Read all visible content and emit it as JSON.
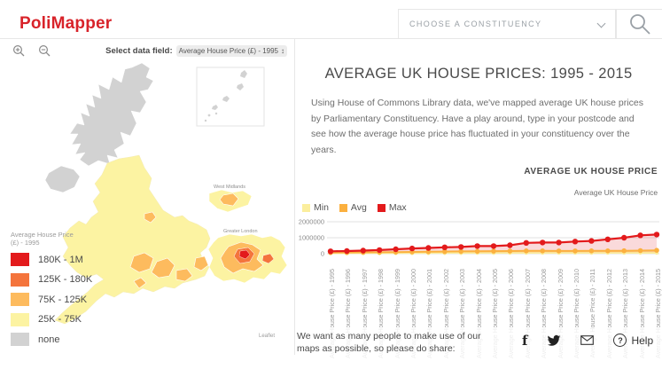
{
  "header": {
    "logo": "PoliMapper",
    "constituency_placeholder": "CHOOSE A CONSTITUENCY"
  },
  "map_panel": {
    "select_label": "Select data field:",
    "select_value": "Average House Price (£) - 1995",
    "inset_labels": {
      "west_midlands": "West Midlands",
      "greater_london": "Greater London"
    },
    "attribution": "Leaflet",
    "legend": {
      "title_line1": "Average House Price",
      "title_line2": "(£) - 1995",
      "items": [
        {
          "label": "180K - 1M",
          "color": "#e31a1c"
        },
        {
          "label": "125K - 180K",
          "color": "#f4743c"
        },
        {
          "label": "75K - 125K",
          "color": "#fdbb5e"
        },
        {
          "label": "25K - 75K",
          "color": "#fcf3a2"
        },
        {
          "label": "none",
          "color": "#d2d2d2"
        }
      ]
    }
  },
  "article": {
    "title": "AVERAGE UK HOUSE PRICES: 1995 - 2015",
    "body": "Using House of Commons Library data, we've mapped average UK house prices by Parliamentary Constituency. Have a play around, type in your postcode and see how the average house price has fluctuated in your constituency over the years.",
    "chart_heading": "AVERAGE UK HOUSE PRICE",
    "chart_subheading": "Average UK House Price"
  },
  "chart_data": {
    "type": "line",
    "title": "Average UK House Price",
    "categories": [
      "Average House Price (£) - 1995",
      "Average House Price (£) - 1996",
      "Average House Price (£) - 1997",
      "Average House Price (£) - 1998",
      "Average House Price (£) - 1999",
      "Average House Price (£) - 2000",
      "Average House Price (£) - 2001",
      "Average House Price (£) - 2002",
      "Average House Price (£) - 2003",
      "Average House Price (£) - 2004",
      "Average House Price (£) - 2005",
      "Average House Price (£) - 2006",
      "Average House Price (£) - 2007",
      "Average House Price (£) - 2008",
      "Average House Price (£) - 2009",
      "Average House Price (£) - 2010",
      "Average House Price (£) - 2011",
      "Average House Price (£) - 2012",
      "Average House Price (£) - 2013",
      "Average House Price (£) - 2014",
      "Average House Price (£) - 2015"
    ],
    "series": [
      {
        "name": "Min",
        "color": "#fbee9d",
        "fill": "rgba(252,243,167,0.85)",
        "values": [
          22000,
          23000,
          25000,
          27000,
          30000,
          33000,
          35000,
          38000,
          41000,
          44000,
          46000,
          48000,
          50000,
          52000,
          48000,
          49000,
          50000,
          51000,
          52000,
          54000,
          56000
        ]
      },
      {
        "name": "Avg",
        "color": "#fbb03f",
        "fill": "rgba(251,176,63,0.45)",
        "values": [
          70000,
          75000,
          82000,
          90000,
          100000,
          112000,
          121000,
          132000,
          142000,
          152000,
          160000,
          167000,
          176000,
          180000,
          170000,
          175000,
          176000,
          180000,
          186000,
          196000,
          210000
        ]
      },
      {
        "name": "Max",
        "color": "#e31a1c",
        "fill": "rgba(227,26,28,0.16)",
        "values": [
          150000,
          165000,
          195000,
          230000,
          280000,
          330000,
          360000,
          400000,
          420000,
          480000,
          480000,
          530000,
          680000,
          700000,
          700000,
          760000,
          800000,
          900000,
          1000000,
          1150000,
          1200000
        ]
      }
    ],
    "ylim": [
      0,
      2000000
    ],
    "yticks": [
      0,
      1000000,
      2000000
    ],
    "ytick_labels": [
      "0",
      "1000000",
      "2000000"
    ],
    "legend_position": "top-left",
    "grid": true
  },
  "footer": {
    "text": "We want as many people to make use of our maps as possible, so please do share:",
    "help_label": "Help"
  }
}
